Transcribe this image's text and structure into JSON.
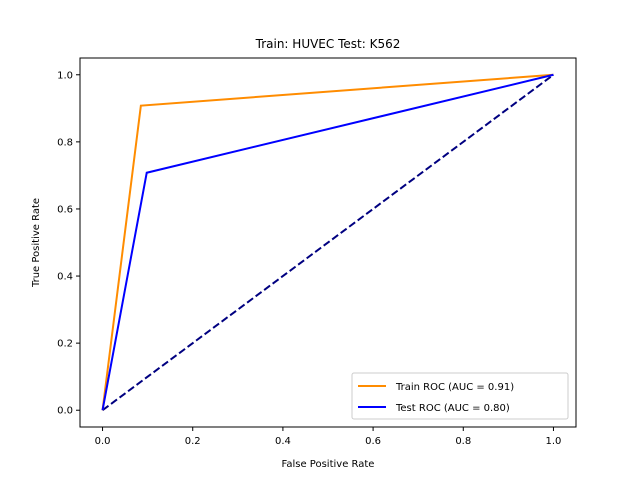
{
  "chart_data": {
    "type": "line",
    "title": "Train: HUVEC   Test: K562",
    "xlabel": "False Positive Rate",
    "ylabel": "True Positive Rate",
    "xlim": [
      -0.05,
      1.05
    ],
    "ylim": [
      -0.05,
      1.05
    ],
    "x_ticks": [
      0.0,
      0.2,
      0.4,
      0.6,
      0.8,
      1.0
    ],
    "y_ticks": [
      0.0,
      0.2,
      0.4,
      0.6,
      0.8,
      1.0
    ],
    "x_tick_labels": [
      "0.0",
      "0.2",
      "0.4",
      "0.6",
      "0.8",
      "1.0"
    ],
    "y_tick_labels": [
      "0.0",
      "0.2",
      "0.4",
      "0.6",
      "0.8",
      "1.0"
    ],
    "grid": false,
    "legend_position": "lower-right",
    "series": [
      {
        "name": "Train ROC (AUC = 0.91)",
        "color": "#ff8c00",
        "style": "solid",
        "x": [
          0.0,
          0.085,
          1.0
        ],
        "y": [
          0.0,
          0.908,
          1.0
        ]
      },
      {
        "name": "Test ROC (AUC = 0.80)",
        "color": "#0000ff",
        "style": "solid",
        "x": [
          0.0,
          0.098,
          1.0
        ],
        "y": [
          0.0,
          0.708,
          1.0
        ]
      }
    ],
    "reference_line": {
      "color": "#000080",
      "style": "dashed",
      "x": [
        0.0,
        1.0
      ],
      "y": [
        0.0,
        1.0
      ]
    }
  }
}
